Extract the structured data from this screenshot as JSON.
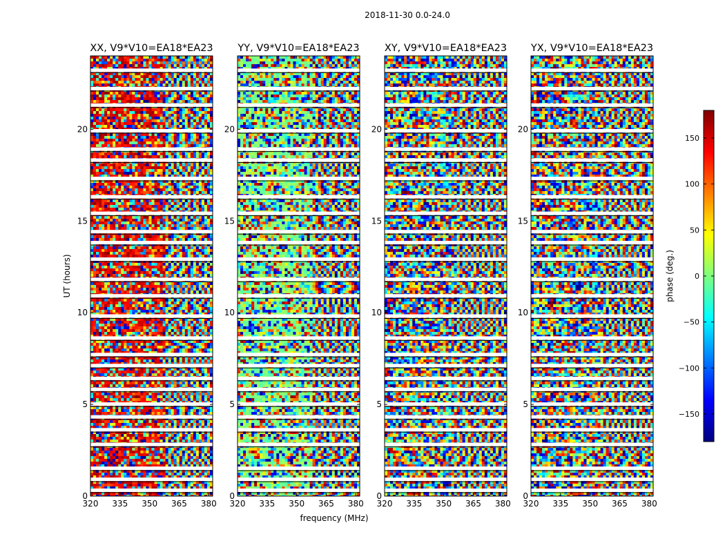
{
  "chart_data": {
    "type": "heatmap",
    "suptitle": "2018-11-30 0.0-24.0",
    "xlabel": "frequency (MHz)",
    "ylabel": "UT (hours)",
    "xlim": [
      320,
      382
    ],
    "ylim": [
      0,
      24
    ],
    "xticks": [
      320,
      335,
      350,
      365,
      380
    ],
    "yticks": [
      0,
      5,
      10,
      15,
      20
    ],
    "colorbar": {
      "label": "phase (deg.)",
      "range": [
        -180,
        180
      ],
      "ticks": [
        150,
        100,
        50,
        0,
        -50,
        -100,
        -150
      ],
      "tick_labels": [
        "150",
        "100",
        "50",
        "0",
        "−50",
        "−100",
        "−150"
      ],
      "colormap": "jet",
      "colors": [
        "#00007f",
        "#0000ff",
        "#007fff",
        "#00ffff",
        "#7fff7f",
        "#ffff00",
        "#ff7f00",
        "#ff0000",
        "#7f0000"
      ]
    },
    "panels": [
      {
        "title": "XX, V9*V10=EA18*EA23",
        "bias": "red"
      },
      {
        "title": "YY, V9*V10=EA18*EA23",
        "bias": "green"
      },
      {
        "title": "XY, V9*V10=EA18*EA23",
        "bias": "none"
      },
      {
        "title": "YX, V9*V10=EA18*EA23",
        "bias": "none"
      }
    ],
    "flagged_gaps_hours": [
      0.3,
      0.9,
      1.5,
      2.8,
      3.6,
      4.3,
      5.0,
      5.8,
      6.4,
      7.1,
      7.7,
      8.6,
      9.8,
      10.9,
      11.8,
      12.9,
      13.8,
      14.4,
      15.4,
      16.3,
      17.3,
      18.3,
      18.9,
      19.9,
      21.3,
      22.2,
      23.2
    ]
  }
}
